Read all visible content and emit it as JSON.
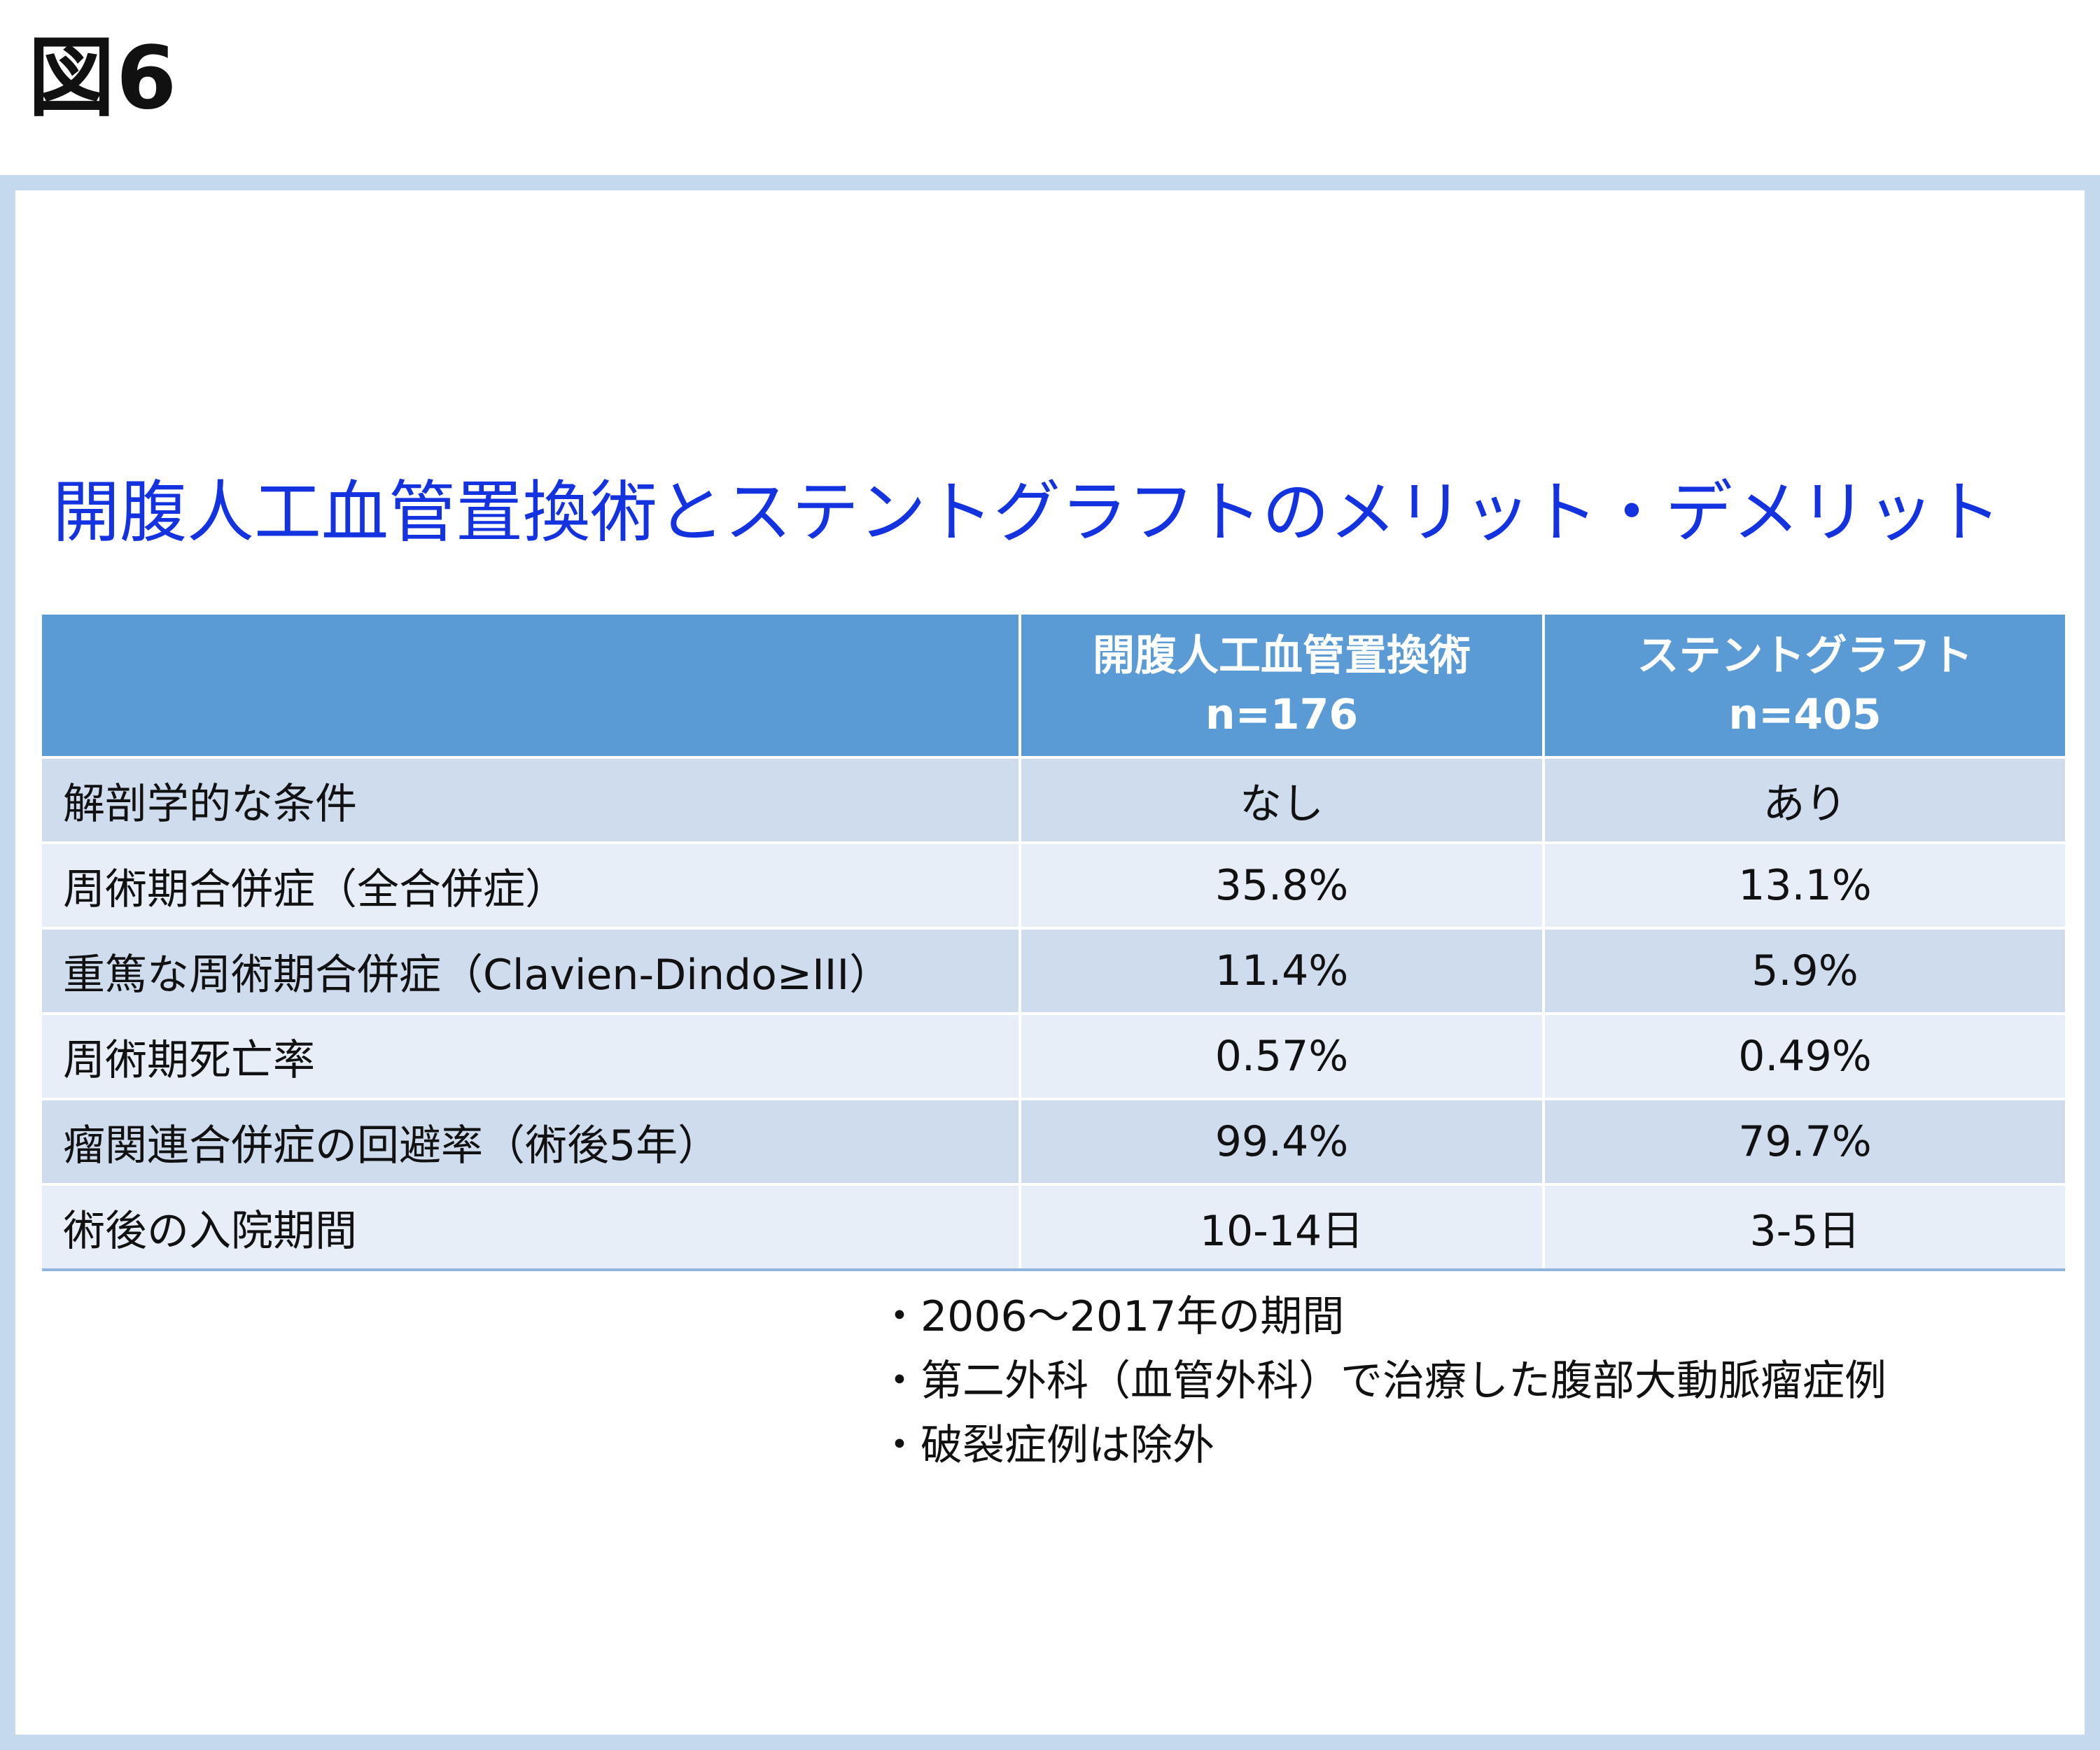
{
  "figure_label": "図6",
  "title": "開腹人工血管置換術とステントグラフトのメリット・デメリット",
  "table": {
    "headers": [
      {
        "line1": "",
        "line2": ""
      },
      {
        "line1": "開腹人工血管置換術",
        "line2": "n=176"
      },
      {
        "line1": "ステントグラフト",
        "line2": "n=405"
      }
    ],
    "rows": [
      {
        "label": "解剖学的な条件",
        "open": "なし",
        "stent": "あり"
      },
      {
        "label": "周術期合併症（全合併症）",
        "open": "35.8%",
        "stent": "13.1%"
      },
      {
        "label": "重篤な周術期合併症（Clavien-Dindo≥III）",
        "open": "11.4%",
        "stent": "5.9%"
      },
      {
        "label": "周術期死亡率",
        "open": "0.57%",
        "stent": "0.49%"
      },
      {
        "label": "瘤関連合併症の回避率（術後5年）",
        "open": "99.4%",
        "stent": "79.7%"
      },
      {
        "label": "術後の入院期間",
        "open": "10-14日",
        "stent": "3-5日"
      }
    ]
  },
  "notes": [
    {
      "bullet": "・",
      "text": "2006～2017年の期間"
    },
    {
      "bullet": "・",
      "text": "第二外科（血管外科）で治療した腹部大動脈瘤症例"
    },
    {
      "bullet": "・",
      "text": "破裂症例は除外"
    }
  ],
  "colors": {
    "title": "#1433e0",
    "header_bg": "#5b9bd5",
    "row_dark": "#cfdcee",
    "row_light": "#e8eef7",
    "frame": "#c5d9ee"
  }
}
